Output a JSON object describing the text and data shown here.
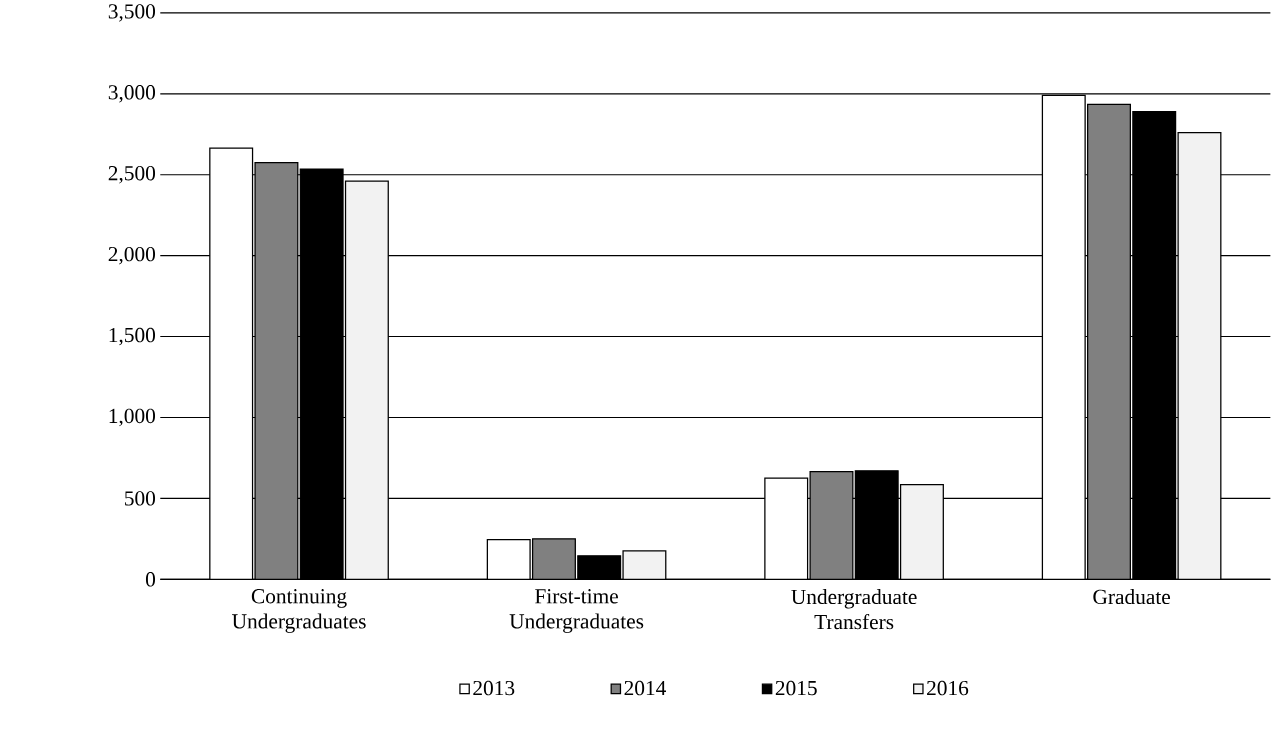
{
  "chart_data": {
    "type": "bar",
    "categories": [
      "Continuing Undergraduates",
      "First-time Undergraduates",
      "Undergraduate Transfers",
      "Graduate"
    ],
    "series": [
      {
        "name": "2013",
        "color": "#ffffff",
        "values": [
          2665,
          245,
          625,
          2990
        ]
      },
      {
        "name": "2014",
        "color": "#808080",
        "values": [
          2575,
          250,
          665,
          2935
        ]
      },
      {
        "name": "2015",
        "color": "#000000",
        "values": [
          2535,
          145,
          670,
          2890
        ]
      },
      {
        "name": "2016",
        "color": "#f2f2f2",
        "values": [
          2460,
          175,
          585,
          2760
        ]
      }
    ],
    "ylim": [
      0,
      3500
    ],
    "yticks": [
      {
        "value": 0,
        "label": "0"
      },
      {
        "value": 500,
        "label": "500"
      },
      {
        "value": 1000,
        "label": "1,000"
      },
      {
        "value": 1500,
        "label": "1,500"
      },
      {
        "value": 2000,
        "label": "2,000"
      },
      {
        "value": 2500,
        "label": "2,500"
      },
      {
        "value": 3000,
        "label": "3,000"
      },
      {
        "value": 3500,
        "label": "3,500"
      }
    ],
    "grid": "y",
    "legend": "bottom"
  }
}
